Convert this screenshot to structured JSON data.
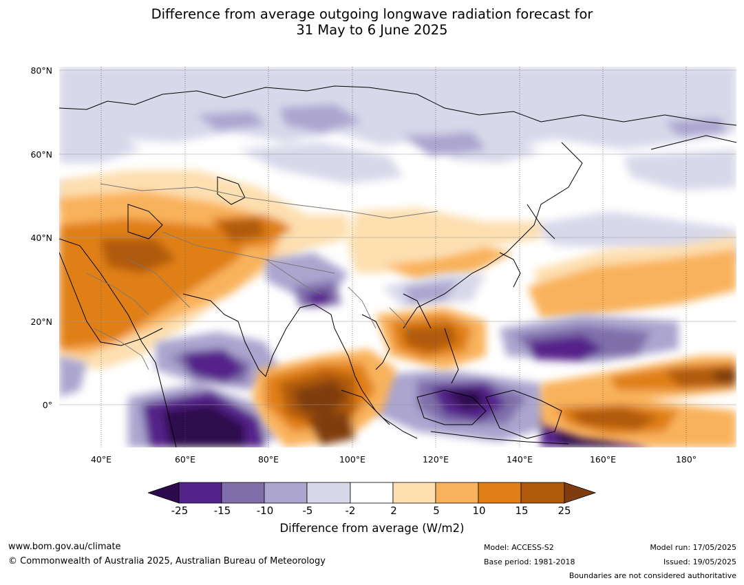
{
  "title": {
    "line1": "Difference from average outgoing longwave radiation forecast for",
    "line2": "31 May to 6 June 2025"
  },
  "map": {
    "lat_labels": [
      "80°N",
      "60°N",
      "40°N",
      "20°N",
      "0°"
    ],
    "lon_labels": [
      "40°E",
      "60°E",
      "80°E",
      "100°E",
      "120°E",
      "140°E",
      "160°E",
      "180°"
    ],
    "extent": {
      "lon_min": 30,
      "lon_max": 192,
      "lat_min": -10,
      "lat_max": 80
    }
  },
  "colorbar": {
    "ticks": [
      "-25",
      "-15",
      "-10",
      "-5",
      "-2",
      "2",
      "5",
      "10",
      "15",
      "25"
    ],
    "colors": [
      "#2d0a4e",
      "#54248a",
      "#7f6eaa",
      "#aba5cf",
      "#d8d8ea",
      "#ffffff",
      "#fddfb0",
      "#f9b25c",
      "#e07f17",
      "#b05a0b",
      "#7f3c10"
    ],
    "label": "Difference from average (W/m2)"
  },
  "footer": {
    "website": "www.bom.gov.au/climate",
    "copyright": "© Commonwealth of Australia 2025, Australian Bureau of Meteorology",
    "model": "Model: ACCESS-S2",
    "base_period": "Base period: 1981-2018",
    "model_run": "Model run: 17/05/2025",
    "issued": "Issued: 19/05/2025",
    "disclaimer": "Boundaries are not considered authoritative"
  }
}
